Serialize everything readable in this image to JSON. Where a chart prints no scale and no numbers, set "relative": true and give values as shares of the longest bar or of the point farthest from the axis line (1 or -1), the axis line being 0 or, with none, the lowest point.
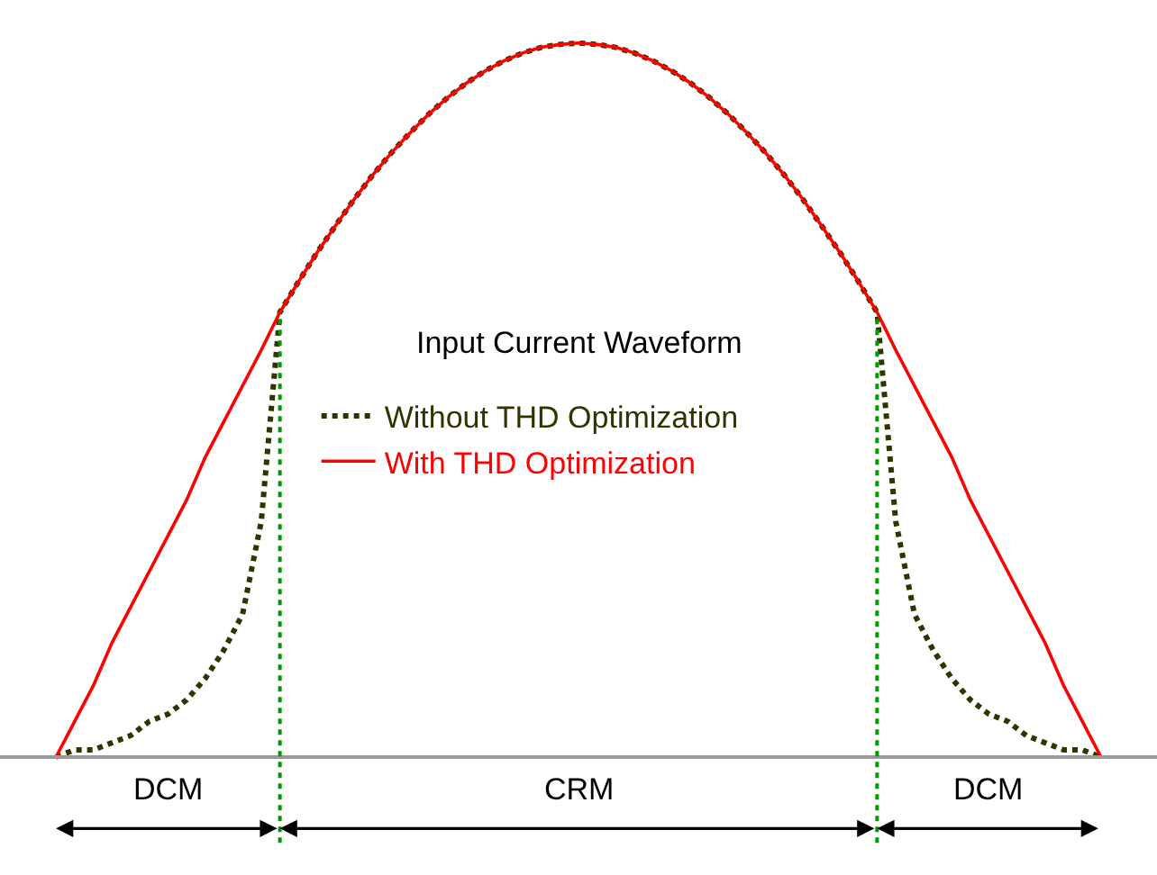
{
  "chart_data": {
    "type": "line",
    "relative": true,
    "legend": "left",
    "categories": [
      null,
      null,
      null,
      null,
      null,
      null,
      null,
      null,
      null,
      null,
      null,
      null,
      null,
      null,
      null,
      null,
      null,
      null,
      null,
      null,
      null,
      null,
      null,
      null,
      null,
      null,
      null,
      null,
      null,
      null,
      null,
      null,
      null,
      null,
      null,
      null,
      null,
      null,
      null,
      null,
      null,
      null,
      null,
      null,
      null,
      null,
      null,
      null,
      null,
      null,
      null,
      null,
      null,
      null,
      null,
      null,
      null
    ],
    "series": [
      {
        "name": "Without THD Optimization",
        "color": "#333300",
        "line_style": "dotted",
        "values": [
          0,
          0.01,
          0.01,
          0.02,
          0.03,
          0.05,
          0.06,
          0.08,
          0.11,
          0.15,
          0.2,
          0.33,
          0.623,
          0.666,
          0.707,
          0.745,
          0.782,
          0.816,
          0.847,
          0.875,
          0.901,
          0.924,
          0.944,
          0.961,
          0.975,
          0.986,
          0.994,
          0.998,
          1,
          0.998,
          0.994,
          0.986,
          0.975,
          0.961,
          0.944,
          0.924,
          0.901,
          0.875,
          0.847,
          0.816,
          0.782,
          0.745,
          0.707,
          0.666,
          0.623,
          0.33,
          0.2,
          0.15,
          0.11,
          0.08,
          0.06,
          0.05,
          0.03,
          0.02,
          0.01,
          0.01,
          0
        ]
      },
      {
        "name": "With THD Optimization",
        "color": "#ff0000",
        "line_style": "solid",
        "values": [
          0,
          0.05,
          0.1,
          0.16,
          0.21,
          0.26,
          0.31,
          0.36,
          0.42,
          0.47,
          0.52,
          0.57,
          0.623,
          0.666,
          0.707,
          0.745,
          0.782,
          0.816,
          0.847,
          0.875,
          0.901,
          0.924,
          0.944,
          0.961,
          0.975,
          0.986,
          0.994,
          0.998,
          1,
          0.998,
          0.994,
          0.986,
          0.975,
          0.961,
          0.944,
          0.924,
          0.901,
          0.875,
          0.847,
          0.816,
          0.782,
          0.745,
          0.707,
          0.666,
          0.623,
          0.57,
          0.52,
          0.47,
          0.42,
          0.36,
          0.31,
          0.26,
          0.21,
          0.16,
          0.1,
          0.05,
          0
        ]
      }
    ],
    "ref_lines": [
      {
        "axis": "x",
        "color": "#009900",
        "line_style": "dotted"
      },
      {
        "axis": "x",
        "color": "#009900",
        "line_style": "dotted"
      }
    ],
    "annotations": [
      "Input Current Waveform",
      "DCM",
      "CRM",
      "DCM"
    ]
  }
}
